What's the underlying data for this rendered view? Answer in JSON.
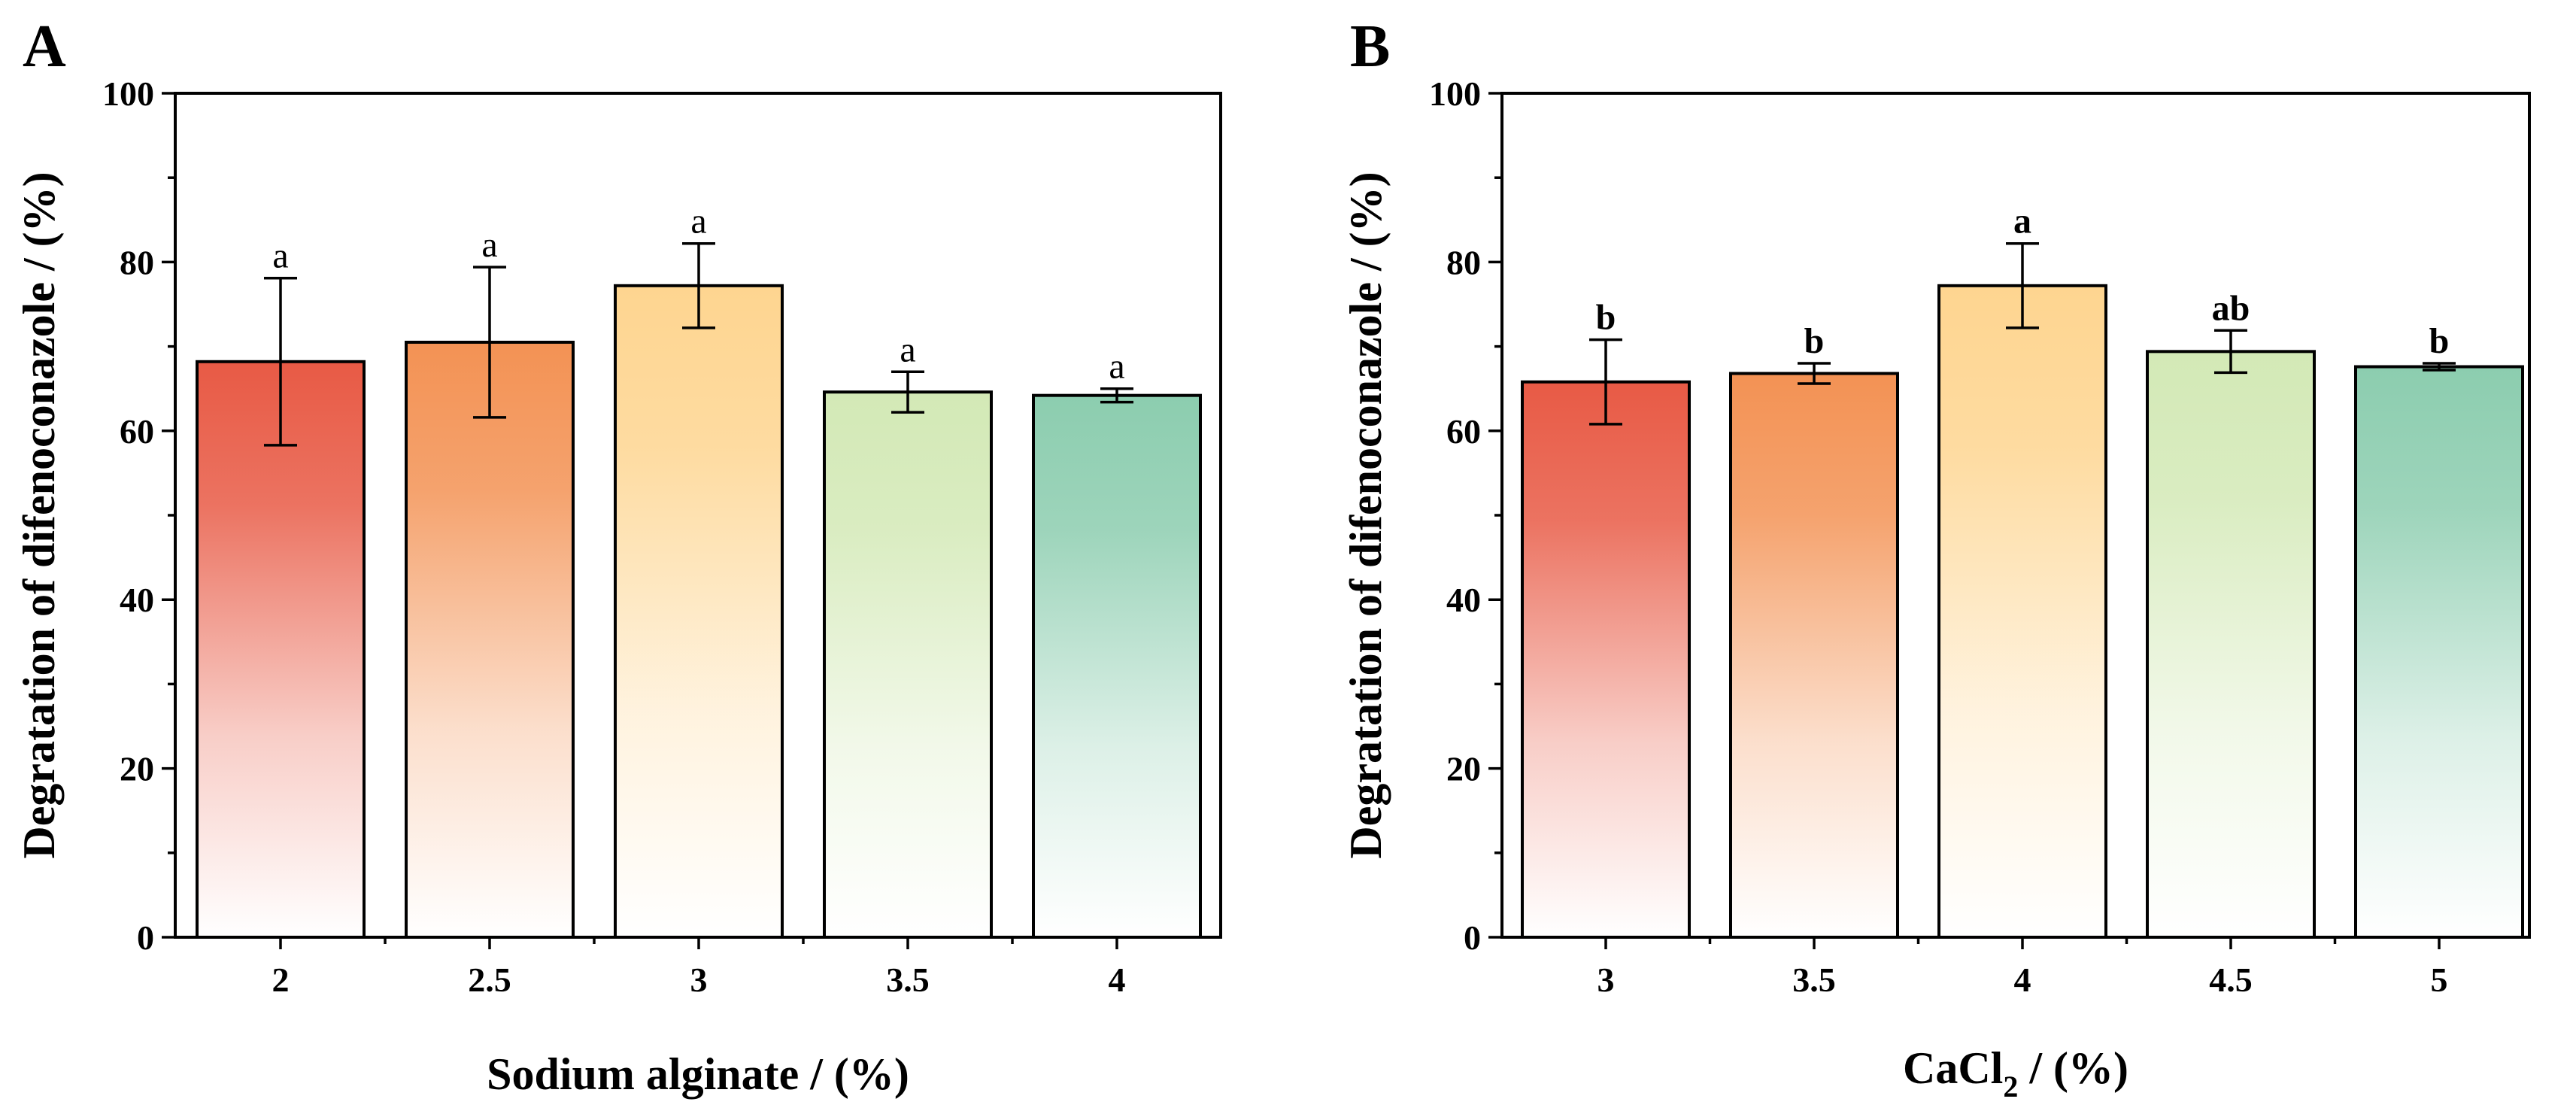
{
  "chart_data": [
    {
      "type": "bar",
      "panel_label": "A",
      "title": "",
      "xlabel": "Sodium alginate / (%)",
      "ylabel": "Degratation of difenoconazole / (%)",
      "ylim": [
        0,
        100
      ],
      "y_ticks": [
        "0",
        "20",
        "40",
        "60",
        "80",
        "100"
      ],
      "categories": [
        "2",
        "2.5",
        "3",
        "3.5",
        "4"
      ],
      "values": [
        68.2,
        70.5,
        77.2,
        64.6,
        64.2
      ],
      "errors": [
        9.9,
        8.9,
        5.0,
        2.4,
        0.8
      ],
      "significance": [
        "a",
        "a",
        "a",
        "a",
        "a"
      ],
      "significance_bold": false,
      "bar_colors": [
        "#e85a45",
        "#f39254",
        "#fed590",
        "#d3e9b6",
        "#8ccdaf"
      ],
      "grid": false,
      "legend": "none"
    },
    {
      "type": "bar",
      "panel_label": "B",
      "title": "",
      "xlabel": "CaCl",
      "xlabel_subscript": "2",
      "xlabel_suffix": " / (%)",
      "ylabel": "Degratation of difenoconazole / (%)",
      "ylim": [
        0,
        100
      ],
      "y_ticks": [
        "0",
        "20",
        "40",
        "60",
        "80",
        "100"
      ],
      "categories": [
        "3",
        "3.5",
        "4",
        "4.5",
        "5"
      ],
      "values": [
        65.8,
        66.8,
        77.2,
        69.4,
        67.6
      ],
      "errors": [
        5.0,
        1.2,
        5.0,
        2.5,
        0.4
      ],
      "significance": [
        "b",
        "b",
        "a",
        "ab",
        "b"
      ],
      "significance_bold": true,
      "bar_colors": [
        "#e85a45",
        "#f39254",
        "#fed590",
        "#d3e9b6",
        "#8ccdaf"
      ],
      "grid": false,
      "legend": "none"
    }
  ]
}
